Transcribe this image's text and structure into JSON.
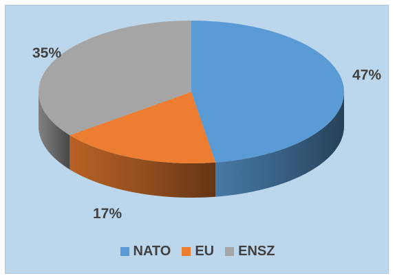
{
  "chart_data": {
    "type": "pie",
    "categories": [
      "NATO",
      "EU",
      "ENSZ"
    ],
    "values": [
      47,
      17,
      35
    ],
    "labels": [
      "47%",
      "17%",
      "35%"
    ],
    "colors": [
      "#5b9bd5",
      "#ed7d31",
      "#a5a5a5"
    ],
    "title": "",
    "legend_position": "bottom",
    "three_d": true
  }
}
